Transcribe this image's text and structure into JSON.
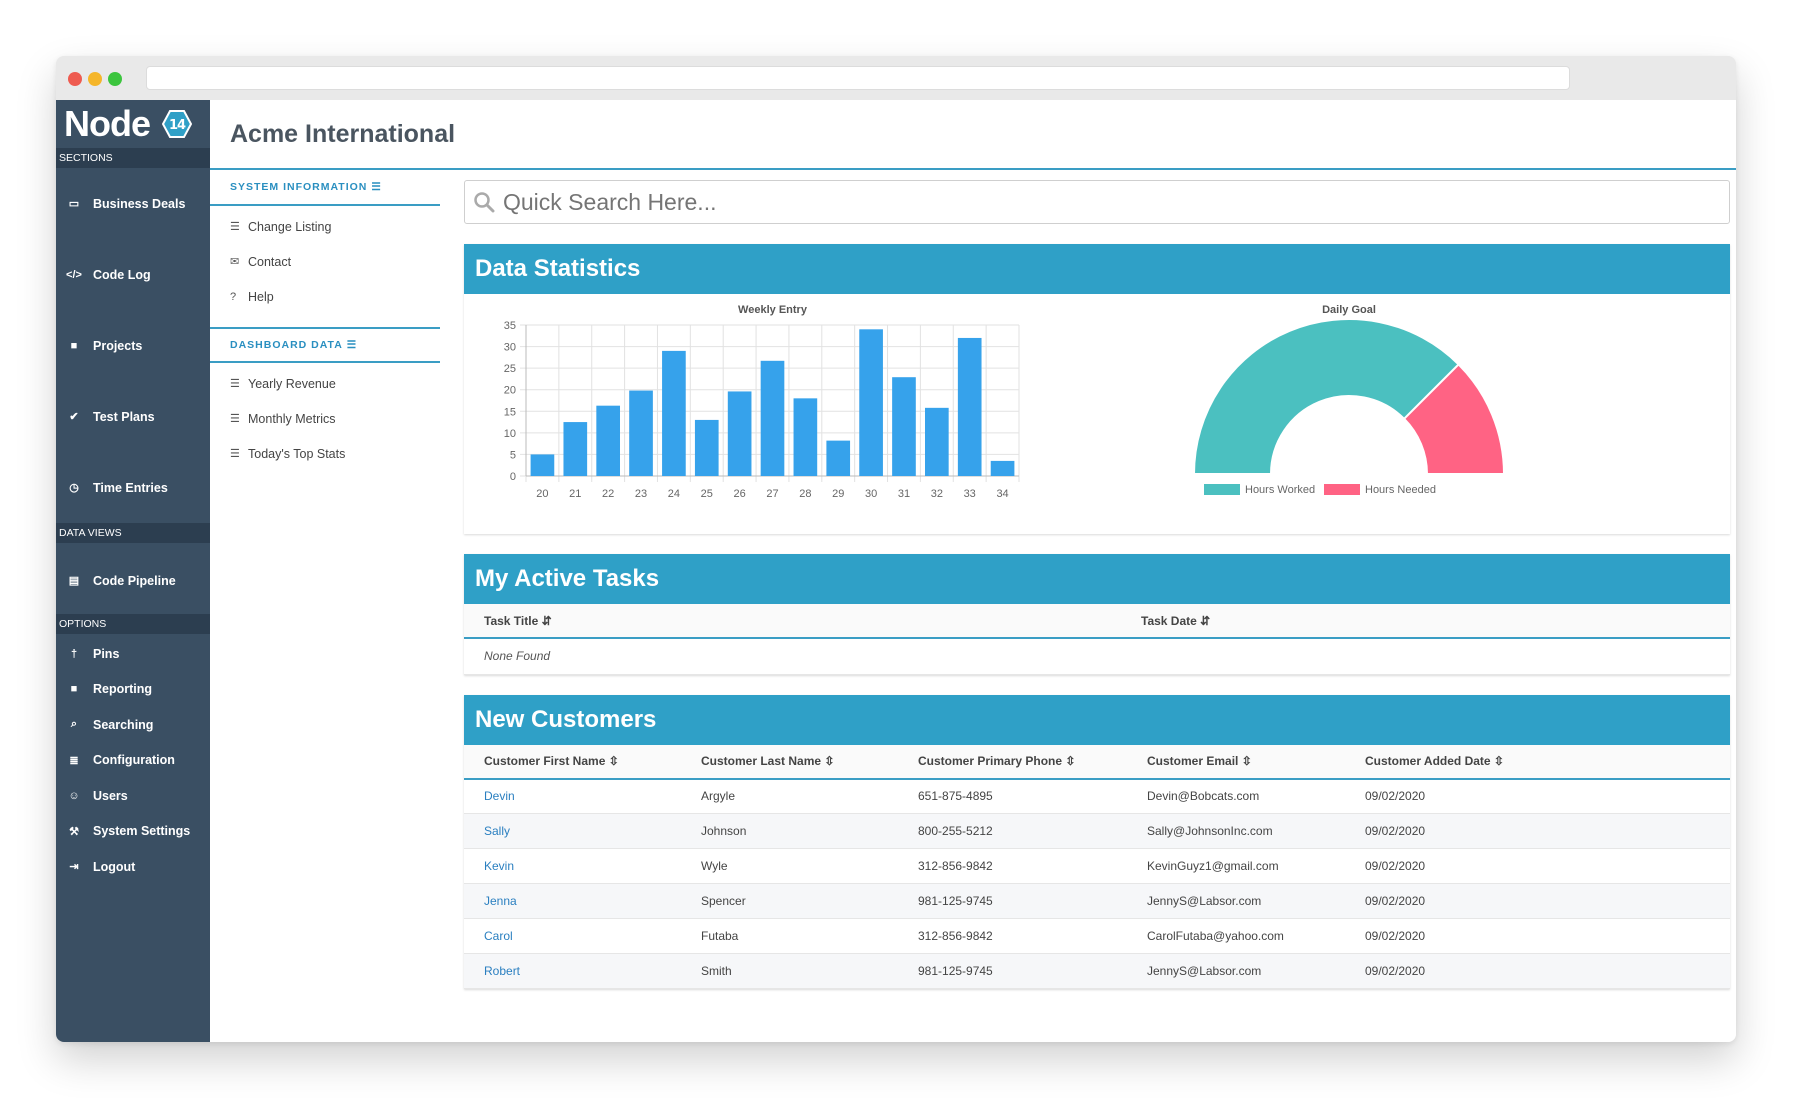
{
  "logo": {
    "text": "Node",
    "badge": "14"
  },
  "sidebar": {
    "sections_label": "SECTIONS",
    "sections": [
      {
        "label": "Business Deals",
        "icon": "credit-card-icon"
      },
      {
        "label": "Code Log",
        "icon": "code-icon"
      },
      {
        "label": "Projects",
        "icon": "book-icon"
      },
      {
        "label": "Test Plans",
        "icon": "check-icon"
      },
      {
        "label": "Time Entries",
        "icon": "clock-icon"
      }
    ],
    "dataviews_label": "DATA VIEWS",
    "dataviews": [
      {
        "label": "Code Pipeline",
        "icon": "table-icon"
      }
    ],
    "options_label": "OPTIONS",
    "options": [
      {
        "label": "Pins",
        "icon": "pin-icon"
      },
      {
        "label": "Reporting",
        "icon": "file-icon"
      },
      {
        "label": "Searching",
        "icon": "search-icon"
      },
      {
        "label": "Configuration",
        "icon": "sliders-icon"
      },
      {
        "label": "Users",
        "icon": "users-icon"
      },
      {
        "label": "System Settings",
        "icon": "wrench-icon"
      },
      {
        "label": "Logout",
        "icon": "sign-out-icon"
      }
    ]
  },
  "page": {
    "title": "Acme International"
  },
  "leftnav": {
    "system_head": "SYSTEM INFORMATION",
    "system_items": [
      {
        "label": "Change Listing",
        "icon": "list-icon"
      },
      {
        "label": "Contact",
        "icon": "envelope-icon"
      },
      {
        "label": "Help",
        "icon": "question-icon"
      }
    ],
    "dashboard_head": "DASHBOARD DATA",
    "dashboard_items": [
      {
        "label": "Yearly Revenue",
        "icon": "list-icon"
      },
      {
        "label": "Monthly Metrics",
        "icon": "list-icon"
      },
      {
        "label": "Today's Top Stats",
        "icon": "list-icon"
      }
    ]
  },
  "search": {
    "placeholder": "Quick Search Here..."
  },
  "stats": {
    "title": "Data Statistics"
  },
  "chart_data": [
    {
      "type": "bar",
      "title": "Weekly Entry",
      "categories": [
        "20",
        "21",
        "22",
        "23",
        "24",
        "25",
        "26",
        "27",
        "28",
        "29",
        "30",
        "31",
        "32",
        "33",
        "34"
      ],
      "values": [
        5,
        12.5,
        16.3,
        19.8,
        29,
        13,
        19.6,
        26.7,
        18,
        8.2,
        34,
        22.9,
        15.8,
        32,
        3.5
      ],
      "ylim": [
        0,
        35
      ],
      "yticks": [
        0,
        5,
        10,
        15,
        20,
        25,
        30,
        35
      ],
      "color": "#36a2eb",
      "grid": true
    },
    {
      "type": "pie",
      "subtype": "half-doughnut",
      "title": "Daily Goal",
      "labels": [
        "Hours Worked",
        "Hours Needed"
      ],
      "values": [
        6,
        2
      ],
      "colors": [
        "#4bc0c0",
        "#ff6384"
      ],
      "legend": "bottom"
    }
  ],
  "tasks": {
    "title": "My Active Tasks",
    "columns": [
      "Task Title",
      "Task Date"
    ],
    "empty": "None Found"
  },
  "customers": {
    "title": "New Customers",
    "columns": [
      "Customer First Name",
      "Customer Last Name",
      "Customer Primary Phone",
      "Customer Email",
      "Customer Added Date"
    ],
    "rows": [
      [
        "Devin",
        "Argyle",
        "651-875-4895",
        "Devin@Bobcats.com",
        "09/02/2020"
      ],
      [
        "Sally",
        "Johnson",
        "800-255-5212",
        "Sally@JohnsonInc.com",
        "09/02/2020"
      ],
      [
        "Kevin",
        "Wyle",
        "312-856-9842",
        "KevinGuyz1@gmail.com",
        "09/02/2020"
      ],
      [
        "Jenna",
        "Spencer",
        "981-125-9745",
        "JennyS@Labsor.com",
        "09/02/2020"
      ],
      [
        "Carol",
        "Futaba",
        "312-856-9842",
        "CarolFutaba@yahoo.com",
        "09/02/2020"
      ],
      [
        "Robert",
        "Smith",
        "981-125-9745",
        "JennyS@Labsor.com",
        "09/02/2020"
      ]
    ]
  }
}
